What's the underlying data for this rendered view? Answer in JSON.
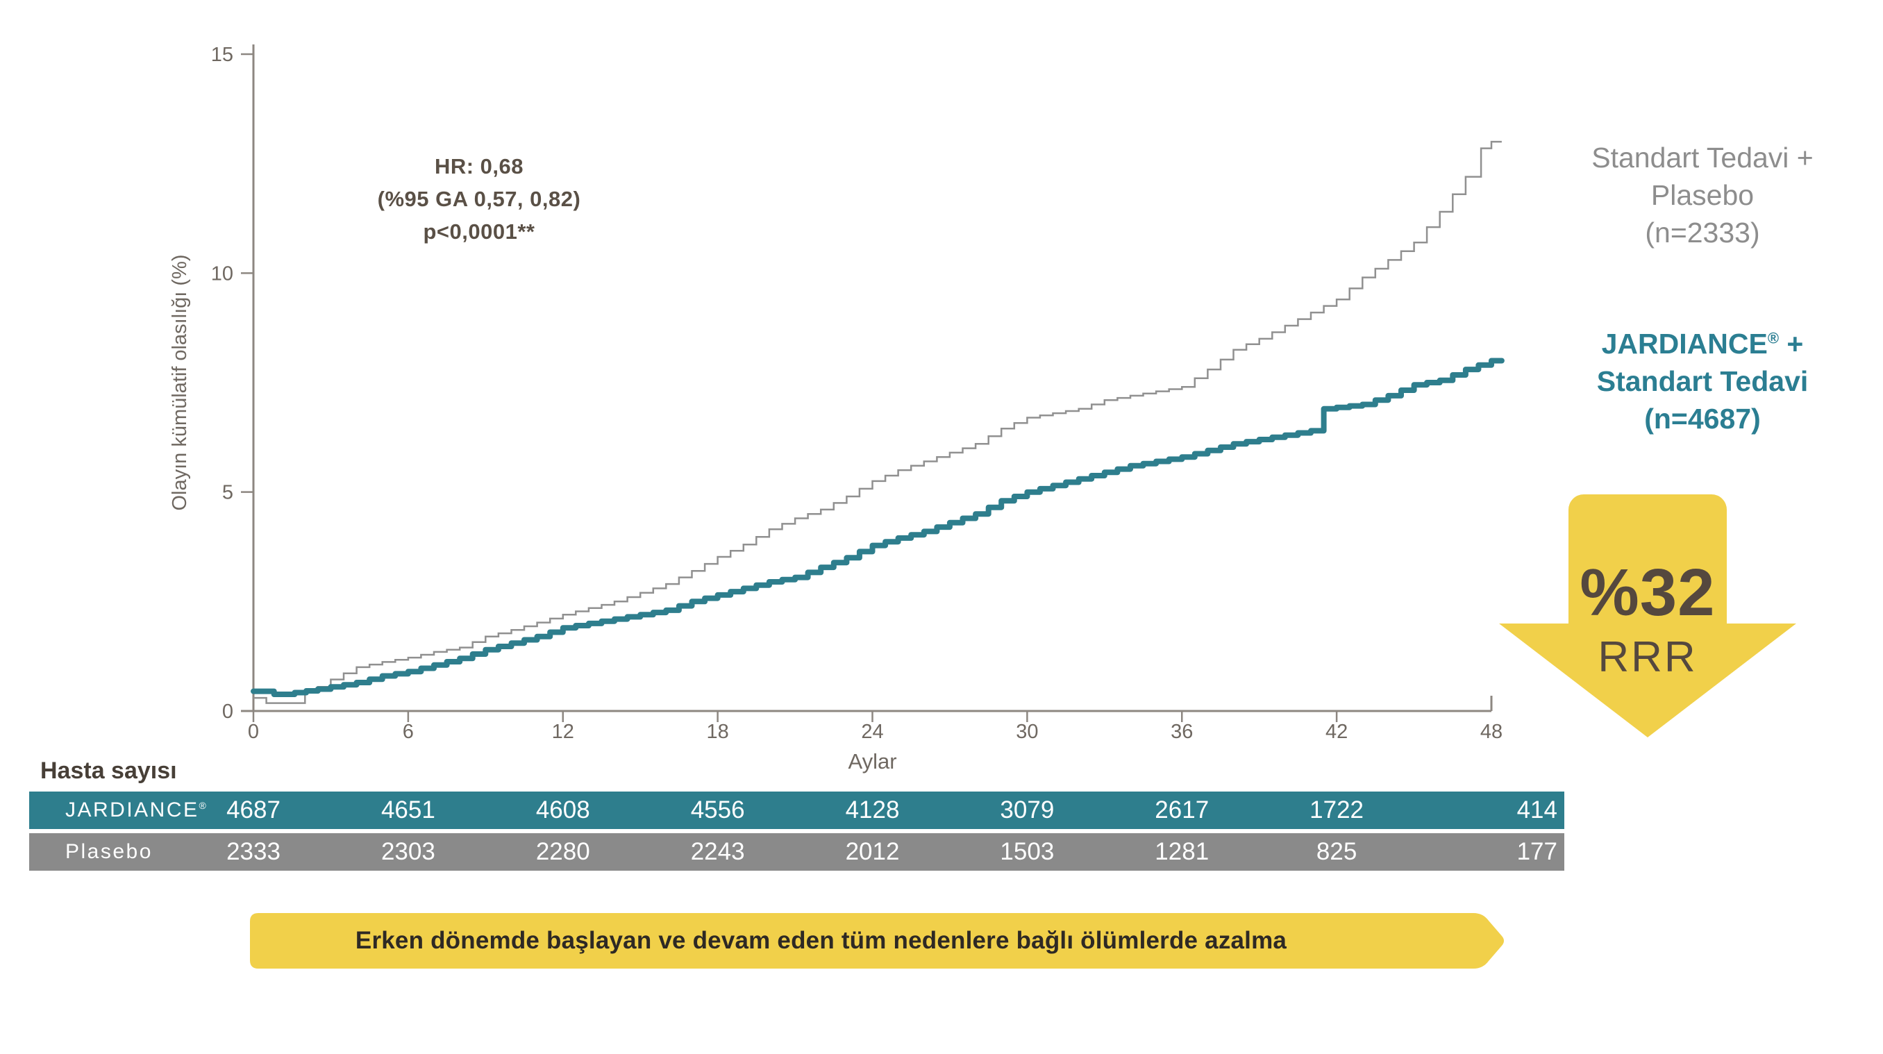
{
  "chart": {
    "y_axis_label": "Olayın kümülatif olasılığı (%)",
    "x_axis_label": "Aylar",
    "y_ticks": [
      0,
      5,
      10,
      15
    ],
    "x_ticks": [
      0,
      6,
      12,
      18,
      24,
      30,
      36,
      42,
      48
    ],
    "hr_annotation": {
      "line1": "HR: 0,68",
      "line2": "(%95 GA 0,57, 0,82)",
      "line3": "p<0,0001**"
    },
    "legend_placebo": {
      "line1": "Standart Tedavi +",
      "line2": "Plasebo",
      "line3": "(n=2333)"
    },
    "legend_jardiance": {
      "brand": "JARDIANCE",
      "reg": "®",
      "suffix": " +",
      "line2": "Standart Tedavi",
      "line3": "(n=4687)"
    }
  },
  "chart_data": {
    "type": "line",
    "step": true,
    "title": "",
    "xlabel": "Aylar",
    "ylabel": "Olayın kümülatif olasılığı (%)",
    "xlim": [
      0,
      48
    ],
    "ylim": [
      0,
      15
    ],
    "grid": false,
    "legend_position": "right",
    "series": [
      {
        "name": "Standart Tedavi + Plasebo (n=2333)",
        "color": "#909090",
        "points": [
          [
            0,
            0.3
          ],
          [
            0.5,
            0.18
          ],
          [
            1.2,
            0.18
          ],
          [
            2,
            0.42
          ],
          [
            2.5,
            0.55
          ],
          [
            3,
            0.72
          ],
          [
            4,
            1.0
          ],
          [
            5,
            1.12
          ],
          [
            6,
            1.22
          ],
          [
            7,
            1.35
          ],
          [
            8,
            1.45
          ],
          [
            9,
            1.7
          ],
          [
            10,
            1.85
          ],
          [
            11,
            2.02
          ],
          [
            12,
            2.2
          ],
          [
            13,
            2.35
          ],
          [
            14,
            2.5
          ],
          [
            15,
            2.7
          ],
          [
            16,
            2.9
          ],
          [
            17,
            3.2
          ],
          [
            18,
            3.52
          ],
          [
            19,
            3.8
          ],
          [
            20,
            4.15
          ],
          [
            21,
            4.4
          ],
          [
            22,
            4.6
          ],
          [
            23,
            4.9
          ],
          [
            24,
            5.25
          ],
          [
            25,
            5.5
          ],
          [
            26,
            5.7
          ],
          [
            27,
            5.9
          ],
          [
            28,
            6.1
          ],
          [
            29,
            6.45
          ],
          [
            30,
            6.7
          ],
          [
            31,
            6.8
          ],
          [
            32,
            6.9
          ],
          [
            33,
            7.1
          ],
          [
            34,
            7.2
          ],
          [
            35,
            7.3
          ],
          [
            36,
            7.4
          ],
          [
            37,
            7.8
          ],
          [
            38,
            8.25
          ],
          [
            39,
            8.5
          ],
          [
            40,
            8.8
          ],
          [
            41,
            9.1
          ],
          [
            42,
            9.4
          ],
          [
            43,
            9.9
          ],
          [
            44,
            10.3
          ],
          [
            45,
            10.7
          ],
          [
            46,
            11.4
          ],
          [
            47,
            12.2
          ],
          [
            47.6,
            12.85
          ],
          [
            48,
            13.0
          ]
        ]
      },
      {
        "name": "JARDIANCE + Standart Tedavi (n=4687)",
        "color": "#2e7e8d",
        "points": [
          [
            0,
            0.45
          ],
          [
            0.8,
            0.38
          ],
          [
            1.6,
            0.42
          ],
          [
            2.5,
            0.5
          ],
          [
            3,
            0.55
          ],
          [
            4,
            0.65
          ],
          [
            5,
            0.8
          ],
          [
            6,
            0.9
          ],
          [
            7,
            1.05
          ],
          [
            8,
            1.2
          ],
          [
            9,
            1.4
          ],
          [
            10,
            1.55
          ],
          [
            11,
            1.7
          ],
          [
            12,
            1.9
          ],
          [
            13,
            2.0
          ],
          [
            14,
            2.1
          ],
          [
            15,
            2.2
          ],
          [
            16,
            2.3
          ],
          [
            17,
            2.5
          ],
          [
            18,
            2.65
          ],
          [
            19,
            2.8
          ],
          [
            20,
            2.95
          ],
          [
            21,
            3.05
          ],
          [
            22,
            3.28
          ],
          [
            23,
            3.5
          ],
          [
            24,
            3.78
          ],
          [
            25,
            3.95
          ],
          [
            26,
            4.1
          ],
          [
            27,
            4.3
          ],
          [
            28,
            4.5
          ],
          [
            29,
            4.8
          ],
          [
            30,
            5.0
          ],
          [
            31,
            5.15
          ],
          [
            32,
            5.3
          ],
          [
            33,
            5.45
          ],
          [
            34,
            5.6
          ],
          [
            35,
            5.7
          ],
          [
            36,
            5.8
          ],
          [
            37,
            5.95
          ],
          [
            38,
            6.1
          ],
          [
            39,
            6.2
          ],
          [
            40,
            6.3
          ],
          [
            41,
            6.4
          ],
          [
            41.5,
            6.9
          ],
          [
            43,
            7.0
          ],
          [
            44,
            7.2
          ],
          [
            45,
            7.45
          ],
          [
            46,
            7.55
          ],
          [
            47,
            7.8
          ],
          [
            48,
            8.0
          ]
        ]
      }
    ]
  },
  "rrr": {
    "value": "%32",
    "label": "RRR"
  },
  "table": {
    "title": "Hasta sayısı",
    "months": [
      0,
      6,
      12,
      18,
      24,
      30,
      36,
      42,
      48
    ],
    "rows": [
      {
        "label": "JARDIANCE",
        "reg": "®",
        "color": "#2e7e8d",
        "values": [
          "4687",
          "4651",
          "4608",
          "4556",
          "4128",
          "3079",
          "2617",
          "1722",
          "414"
        ]
      },
      {
        "label": "Plasebo",
        "reg": "",
        "color": "#8a8a8a",
        "values": [
          "2333",
          "2303",
          "2280",
          "2243",
          "2012",
          "1503",
          "1281",
          "825",
          "177"
        ]
      }
    ]
  },
  "banner": {
    "text": "Erken dönemde başlayan ve devam eden tüm nedenlere bağlı ölümlerde azalma"
  },
  "colors": {
    "teal": "#2e7e8d",
    "gray_row": "#8a8a8a",
    "yellow": "#f1d04a",
    "arrow_text": "#55483e",
    "axis": "#8d8781",
    "tick_text": "#6f6861"
  }
}
